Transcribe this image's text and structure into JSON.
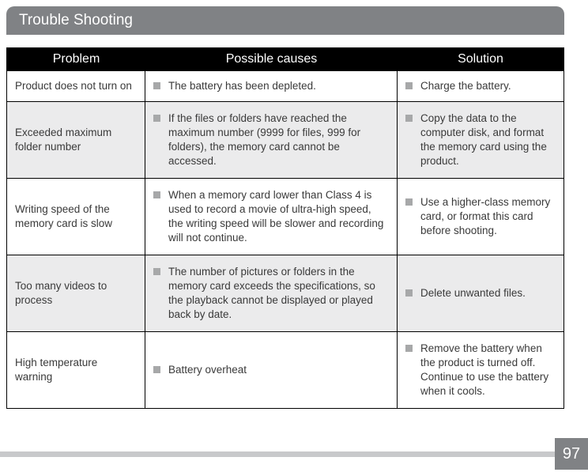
{
  "title": "Trouble Shooting",
  "page_number": "97",
  "colors": {
    "header_bg": "#808285",
    "header_text": "#ffffff",
    "table_header_bg": "#000000",
    "alt_row_bg": "#ebebec",
    "bullet_color": "#a7a8a9",
    "footer_strip": "#c8c9cb"
  },
  "table": {
    "headers": {
      "problem": "Problem",
      "causes": "Possible causes",
      "solution": "Solution"
    },
    "rows": [
      {
        "problem": "Product does not turn on",
        "cause": "The battery has been depleted.",
        "solution": "Charge the battery."
      },
      {
        "problem": "Exceeded maximum folder number",
        "cause": "If the files or folders have reached the maximum number (9999 for files, 999 for folders), the memory card cannot be accessed.",
        "solution": "Copy the data to the computer disk, and format the memory card using the product."
      },
      {
        "problem": "Writing speed of the memory card is slow",
        "cause": "When a memory card lower than Class 4 is used to record a movie of ultra-high speed, the writing speed will be slower and recording will not continue.",
        "solution": "Use a higher-class memory card, or format this card before shooting."
      },
      {
        "problem": "Too many videos to process",
        "cause": "The number of pictures or folders in the memory card exceeds the specifications, so the playback cannot be displayed or played back by date.",
        "solution": "Delete unwanted files."
      },
      {
        "problem": "High temperature warning",
        "cause": "Battery overheat",
        "solution": "Remove the battery when the product is turned off. Continue to use the battery when it cools."
      }
    ]
  }
}
